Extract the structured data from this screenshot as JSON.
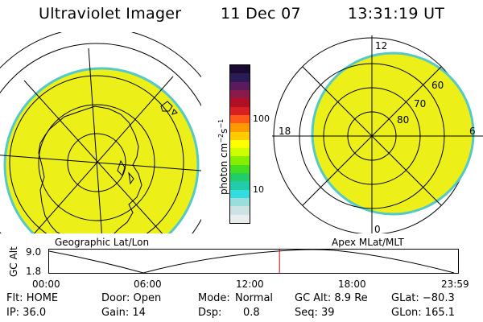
{
  "header": {
    "title": "Ultraviolet Imager",
    "date": "11 Dec 07",
    "time": "13:31:19 UT"
  },
  "colorbar": {
    "unit": "photon cm",
    "unit_exp1": "−2",
    "unit_mid": "s",
    "unit_exp2": "−1",
    "ticks": [
      "100",
      "10"
    ],
    "colors": [
      "#1a0a33",
      "#2b1b55",
      "#5a1a5c",
      "#8a1a4a",
      "#b01025",
      "#d82020",
      "#ff5a1a",
      "#ff9900",
      "#ffcc00",
      "#ffff00",
      "#ccff00",
      "#88ee00",
      "#44dd22",
      "#22cc66",
      "#22ccaa",
      "#33dddd",
      "#99dddd",
      "#cce3e6",
      "#e8eeee"
    ]
  },
  "left_map": {
    "caption": "Geographic Lat/Lon",
    "fill_color": "#ecf018",
    "edge_color": "#55c8c8"
  },
  "right_map": {
    "caption": "Apex MLat/MLT",
    "mlt_labels": {
      "top": "12",
      "left": "18",
      "right": "6",
      "bottom": "0"
    },
    "lat_labels": [
      "60",
      "70",
      "80"
    ],
    "fill_color": "#ecf018",
    "edge_color": "#55c8c8"
  },
  "timeline": {
    "ylabel": "GC Alt",
    "y_ticks": [
      "9.0",
      "1.8"
    ],
    "x_ticks": [
      "00:00",
      "06:00",
      "12:00",
      "18:00",
      "23:59"
    ],
    "current_time_hours": 13.52,
    "marker_color": "#cc0000"
  },
  "info": {
    "flt": "Flt: HOME",
    "door": "Door: Open",
    "mode_label": "Mode:",
    "mode_value": "Normal",
    "gcalt": "GC Alt: 8.9 Re",
    "glat": "GLat: −80.3",
    "ip": "IP: 36.0",
    "gain": "Gain: 14",
    "dsp_label": "Dsp:",
    "dsp_value": "0.8",
    "seq": "Seq: 39",
    "glon": "GLon: 165.1"
  }
}
